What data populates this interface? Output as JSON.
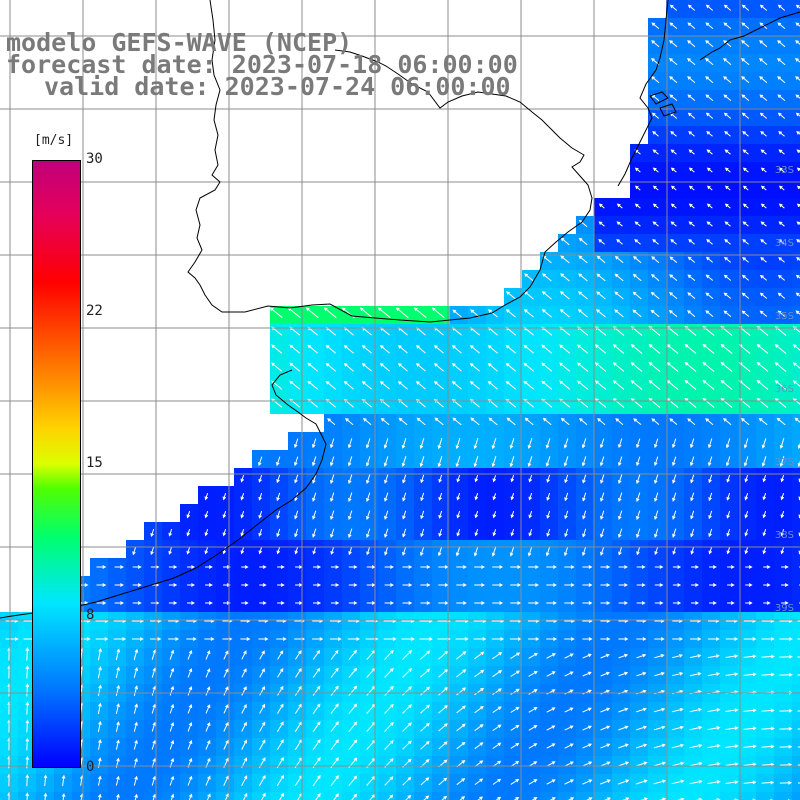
{
  "title": {
    "model": "modelo GEFS-WAVE (NCEP)",
    "forecast": "forecast date: 2023-07-18 06:00:00",
    "valid": "valid date: 2023-07-24 06:00:00"
  },
  "colorbar": {
    "unit": "[m/s]",
    "ticks": [
      "30",
      "22",
      "15",
      "8",
      "0"
    ],
    "range": [
      0,
      30
    ],
    "colors": [
      "#0000ff",
      "#0078ff",
      "#00e6ff",
      "#00ff6e",
      "#50ff00",
      "#dcff00",
      "#ffd200",
      "#ff7800",
      "#ff0000",
      "#e6005a",
      "#c0007a"
    ]
  },
  "lat_labels": [
    "33S",
    "34S",
    "35S",
    "36S",
    "37S",
    "38S",
    "39S"
  ],
  "colors": {
    "land": "#ffffff",
    "grid": "#888888",
    "coast": "#000000",
    "arrow": "#ffffff",
    "title": "#7a7a7a"
  }
}
